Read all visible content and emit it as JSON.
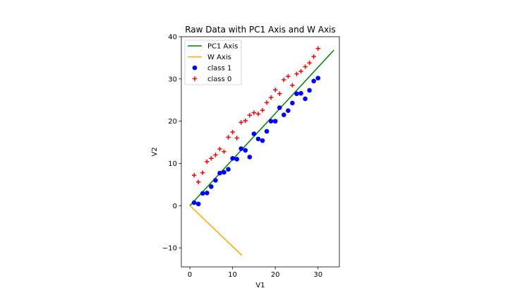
{
  "chart_data": {
    "type": "scatter",
    "title": "Raw Data with PC1 Axis and W Axis",
    "xlabel": "V1",
    "ylabel": "V2",
    "xlim": [
      -2,
      35
    ],
    "ylim": [
      -14.5,
      40
    ],
    "xticks": [
      0,
      10,
      20,
      30
    ],
    "yticks": [
      -10,
      0,
      10,
      20,
      30,
      40
    ],
    "grid": false,
    "legend_position": "top-left",
    "series": [
      {
        "name": "PC1 Axis",
        "kind": "line",
        "color": "#008000",
        "x": [
          0,
          33.7
        ],
        "y": [
          0,
          36.8
        ]
      },
      {
        "name": "W Axis",
        "kind": "line",
        "color": "#ffa500",
        "x": [
          0,
          12.2
        ],
        "y": [
          0,
          -11.8
        ]
      },
      {
        "name": "class 1",
        "kind": "scatter",
        "marker": "circle",
        "color": "#0000ff",
        "x": [
          1,
          2,
          3,
          4,
          5,
          6,
          7,
          8,
          9,
          10,
          11,
          12,
          13,
          14,
          15,
          16,
          17,
          18,
          19,
          20,
          21,
          22,
          23,
          24,
          25,
          26,
          27,
          28,
          29,
          30
        ],
        "y": [
          0.7,
          0.4,
          2.9,
          3.0,
          4.5,
          6.0,
          7.7,
          7.9,
          8.6,
          11.2,
          11.0,
          13.5,
          13.1,
          11.5,
          17.0,
          15.8,
          15.4,
          17.6,
          20.0,
          20.0,
          23.2,
          21.5,
          22.5,
          24.3,
          26.5,
          26.6,
          25.3,
          27.3,
          29.5,
          30.2
        ]
      },
      {
        "name": "class 0",
        "kind": "scatter",
        "marker": "plus",
        "color": "#ff0000",
        "x": [
          1,
          2,
          3,
          4,
          5,
          6,
          7,
          8,
          9,
          10,
          11,
          12,
          13,
          14,
          15,
          16,
          17,
          18,
          19,
          20,
          21,
          22,
          23,
          24,
          25,
          26,
          27,
          28,
          29,
          30
        ],
        "y": [
          7.2,
          5.6,
          7.8,
          10.4,
          11.2,
          12.0,
          13.4,
          12.8,
          16.2,
          17.4,
          16.0,
          19.7,
          20.1,
          21.4,
          22.0,
          21.7,
          22.6,
          24.4,
          25.6,
          27.4,
          26.5,
          29.8,
          30.6,
          28.5,
          31.2,
          31.8,
          32.9,
          33.8,
          35.3,
          37.2
        ]
      }
    ]
  }
}
